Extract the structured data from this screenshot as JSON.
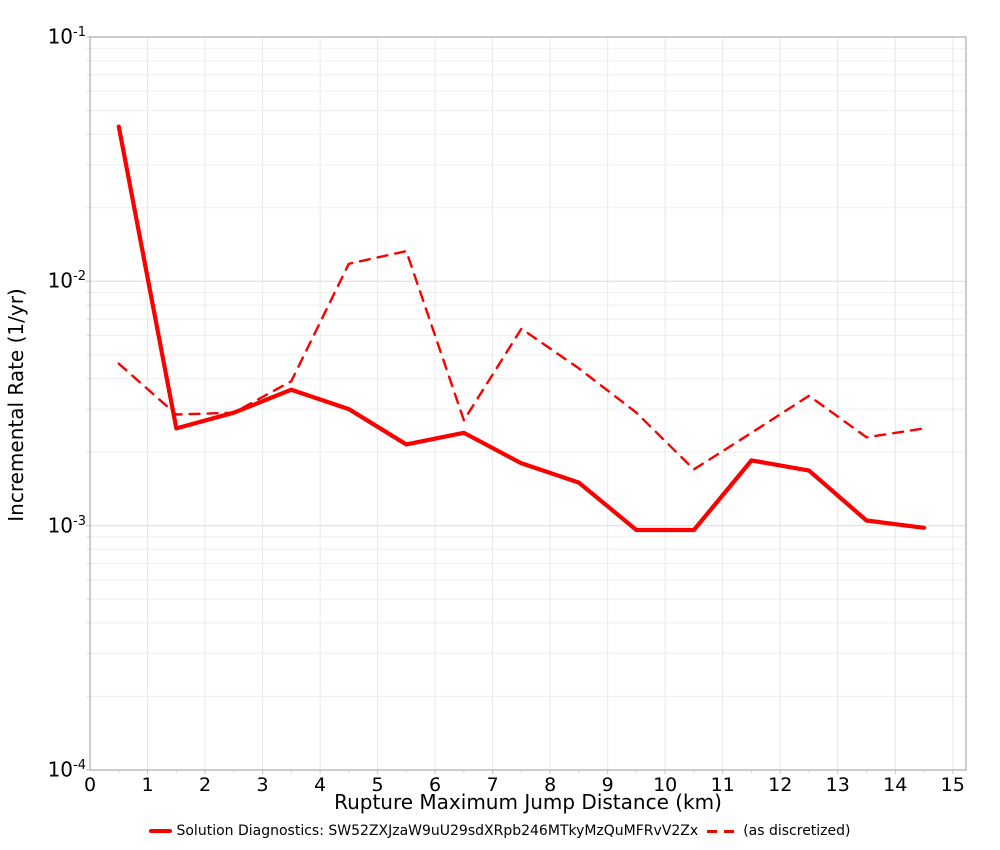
{
  "chart_data": {
    "type": "line",
    "title": "",
    "xlabel": "Rupture Maximum Jump Distance (km)",
    "ylabel": "Incremental Rate (1/yr)",
    "yscale": "log",
    "grid": true,
    "legend_position": "bottom",
    "line_color": "#fb0000",
    "xlim": [
      0,
      15.23
    ],
    "ylim": [
      0.0001,
      0.1
    ],
    "x_ticks": [
      0,
      1,
      2,
      3,
      4,
      5,
      6,
      7,
      8,
      9,
      10,
      11,
      12,
      13,
      14,
      15
    ],
    "y_ticks": [
      {
        "base": "10",
        "exp": "-1",
        "value": 0.1
      },
      {
        "base": "10",
        "exp": "-2",
        "value": 0.01
      },
      {
        "base": "10",
        "exp": "-3",
        "value": 0.001
      },
      {
        "base": "10",
        "exp": "-4",
        "value": 0.0001
      }
    ],
    "x": [
      0.5,
      1.5,
      2.5,
      3.5,
      4.5,
      5.5,
      6.5,
      7.5,
      8.5,
      9.5,
      10.5,
      11.5,
      12.5,
      13.5,
      14.5
    ],
    "series": [
      {
        "name": "Solution Diagnostics: SW52ZXJzaW9uU29sdXRpb246MTkyMzQuMFRvV2Zx",
        "style": "solid",
        "color": "#fb0000",
        "values": [
          0.043,
          0.0025,
          0.0029,
          0.0036,
          0.003,
          0.00215,
          0.0024,
          0.0018,
          0.0015,
          0.00096,
          0.00096,
          0.00185,
          0.00168,
          0.00105,
          0.00098
        ]
      },
      {
        "name": "(as discretized)",
        "style": "dashed",
        "color": "#fb0000",
        "values": [
          0.0046,
          0.00285,
          0.0029,
          0.0039,
          0.0118,
          0.0133,
          0.0027,
          0.0064,
          0.0044,
          0.0029,
          0.0017,
          0.0024,
          0.0034,
          0.0023,
          0.0025
        ]
      }
    ]
  }
}
